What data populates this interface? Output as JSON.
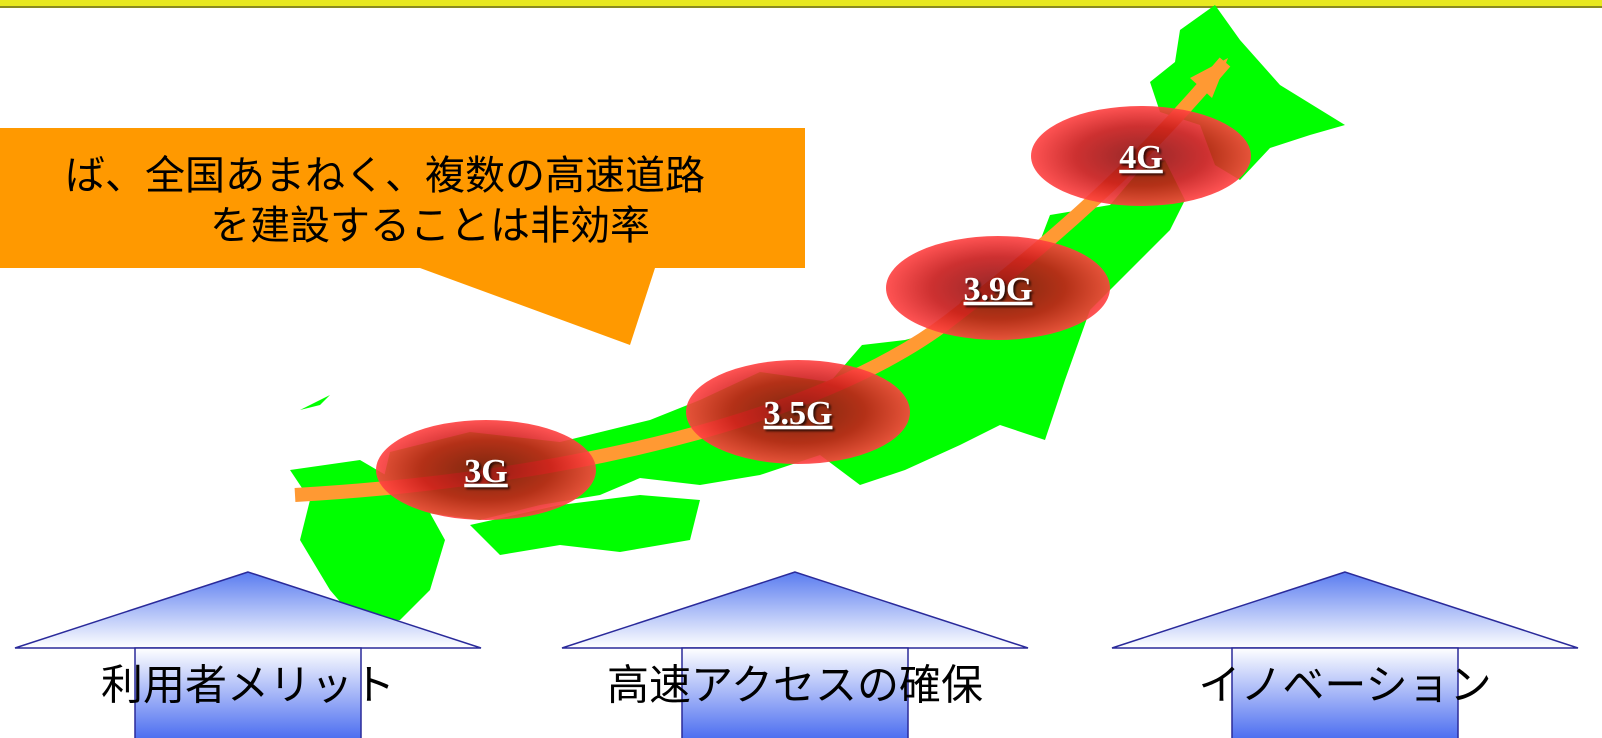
{
  "callout": {
    "lines": [
      "ば、全国あまねく、複数の高速道路",
      "を建設することは非効率"
    ]
  },
  "stages": [
    "3G",
    "3.5G",
    "3.9G",
    "4G"
  ],
  "arrows": [
    "利用者メリット",
    "高速アクセスの確保",
    "イノベーション"
  ]
}
